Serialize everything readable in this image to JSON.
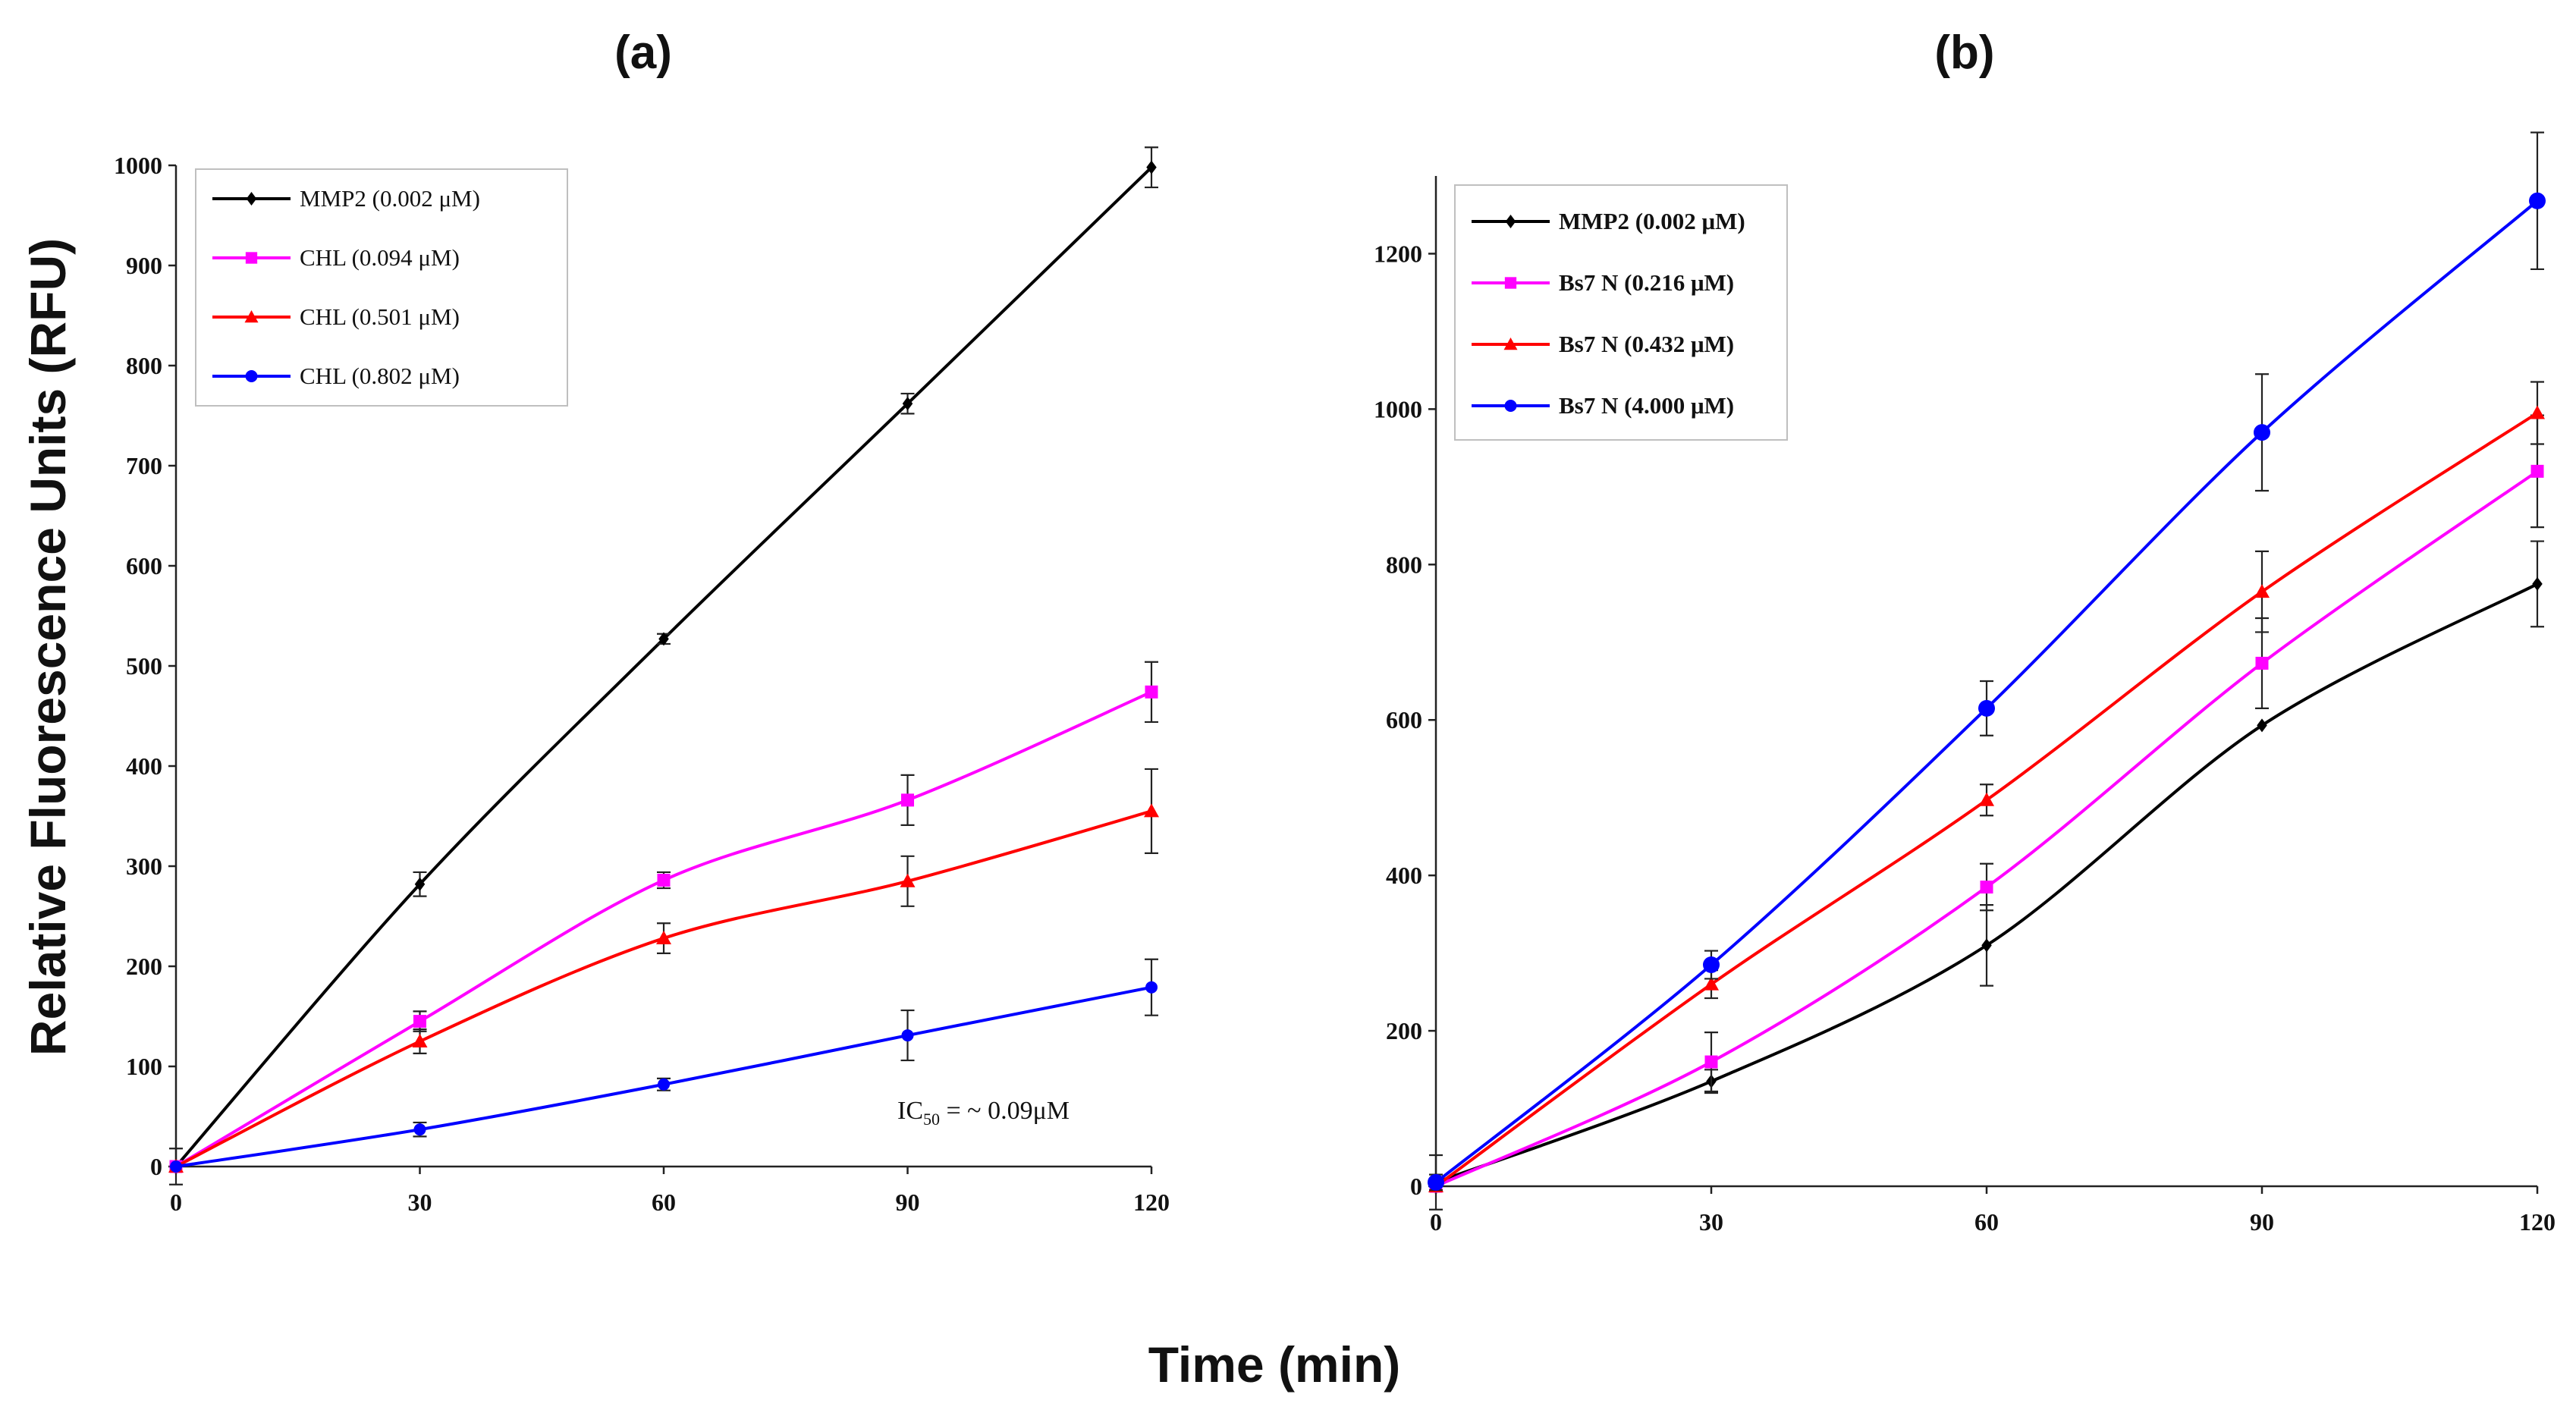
{
  "figure": {
    "shared_ylabel": "Relative Fluorescence Units (RFU)",
    "shared_xlabel": "Time (min)"
  },
  "chart_data": [
    {
      "type": "line",
      "panel_title": "(a)",
      "xlabel": "Time (min)",
      "ylabel": "Relative Fluorescence Units (RFU)",
      "xlim": [
        0,
        120
      ],
      "ylim": [
        0,
        1000
      ],
      "xticks": [
        0,
        30,
        60,
        90,
        120
      ],
      "yticks": [
        0,
        100,
        200,
        300,
        400,
        500,
        600,
        700,
        800,
        900,
        1000
      ],
      "legend_position": "top-left",
      "annotation": {
        "main": "IC",
        "sub": "50",
        "rest": " = ~ 0.09μM"
      },
      "x": [
        0,
        30,
        60,
        90,
        120
      ],
      "series": [
        {
          "name": "MMP2 (0.002 μM)",
          "color": "#000000",
          "marker": "diamond",
          "values": [
            0,
            282,
            527,
            762,
            998
          ],
          "errors": [
            18,
            12,
            5,
            10,
            20
          ]
        },
        {
          "name": "CHL (0.094 μM)",
          "color": "#ff00ff",
          "marker": "square",
          "values": [
            0,
            145,
            286,
            366,
            474
          ],
          "errors": [
            0,
            10,
            8,
            25,
            30
          ]
        },
        {
          "name": "CHL (0.501 μM)",
          "color": "#ff0000",
          "marker": "triangle",
          "values": [
            0,
            125,
            228,
            285,
            355
          ],
          "errors": [
            0,
            12,
            15,
            25,
            42
          ]
        },
        {
          "name": "CHL (0.802 μM)",
          "color": "#0000ff",
          "marker": "circle",
          "values": [
            0,
            37,
            82,
            131,
            179
          ],
          "errors": [
            0,
            7,
            6,
            25,
            28
          ]
        }
      ]
    },
    {
      "type": "line",
      "panel_title": "(b)",
      "xlabel": "Time (min)",
      "ylabel": "Relative Fluorescence Units (RFU)",
      "xlim": [
        0,
        120
      ],
      "ylim": [
        0,
        1300
      ],
      "xticks": [
        0,
        30,
        60,
        90,
        120
      ],
      "yticks": [
        0,
        200,
        400,
        600,
        800,
        1000,
        1200
      ],
      "legend_position": "top-left",
      "x": [
        0,
        30,
        60,
        90,
        120
      ],
      "series": [
        {
          "name": "MMP2 (0.002 μM)",
          "color": "#000000",
          "marker": "diamond",
          "values": [
            5,
            135,
            310,
            593,
            775
          ],
          "errors": [
            35,
            15,
            52,
            0,
            55
          ]
        },
        {
          "name": "Bs7 N (0.216 μM)",
          "color": "#ff00ff",
          "marker": "square",
          "values": [
            0,
            160,
            385,
            673,
            920
          ],
          "errors": [
            0,
            38,
            30,
            58,
            72
          ]
        },
        {
          "name": "Bs7 N (0.432 μM)",
          "color": "#ff0000",
          "marker": "triangle",
          "values": [
            0,
            260,
            497,
            765,
            995
          ],
          "errors": [
            0,
            18,
            20,
            52,
            40
          ]
        },
        {
          "name": "Bs7 N (4.000 μM)",
          "color": "#0000ff",
          "marker": "circle",
          "values": [
            5,
            285,
            615,
            970,
            1268
          ],
          "errors": [
            10,
            18,
            35,
            75,
            88
          ]
        }
      ]
    }
  ]
}
